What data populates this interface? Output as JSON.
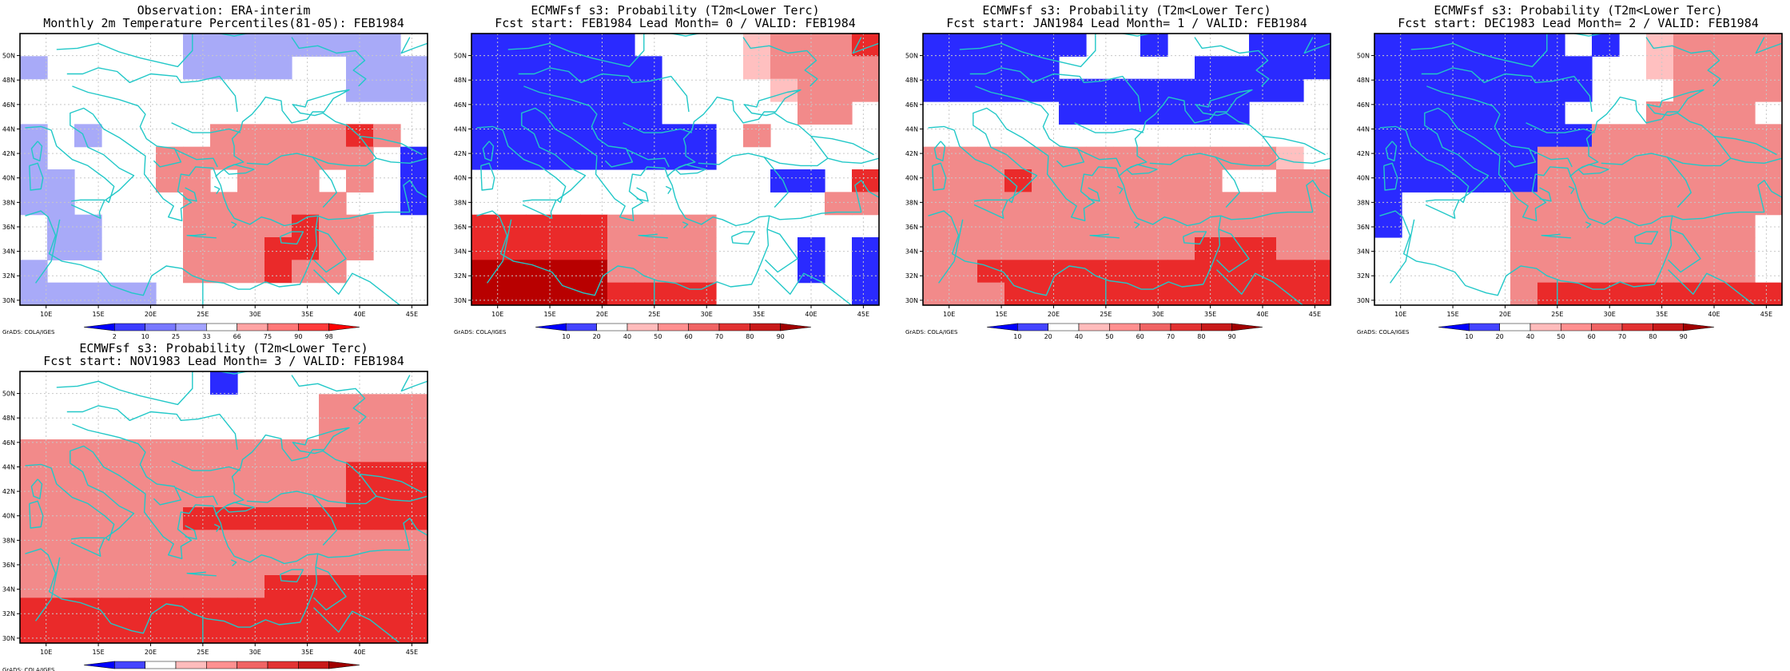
{
  "panels": [
    {
      "title_line1": "Observation: ERA-interim",
      "title_line2": "Monthly 2m Temperature Percentiles(81-05): FEB1984",
      "legend_kind": "percentile",
      "grid": [
        "WWWWWWLLLLLLLLW",
        "LWWWWWLLLLWWLLL",
        "WWWWWWWWWWWWLLL",
        "WWWWWWWWWWWWWWW",
        "LWLWWWWrrrrrRrW",
        "LWWWWrrrrrrrrWB",
        "LLWWWrrWrrrWrWB",
        "LLWWWWrrrrrrWWB",
        "WLLWWWrrrrRrrWW",
        "WLLWWWrrrRRrrWW",
        "LWWWWWrrrRrrWWW",
        "LLLLLWWWWWWWWWW"
      ],
      "footer": "GrADS: COLA/IGES"
    },
    {
      "title_line1": "ECMWFsf s3: Probability (T2m<Lower Terc)",
      "title_line2": "Fcst start: FEB1984   Lead Month= 0 / VALID: FEB1984",
      "legend_kind": "probability",
      "grid": [
        "BBBBBBWWWWlrrrR",
        "BBBBBBBWWWlrrrr",
        "BBBBBBBWWWWlrrr",
        "BBBBBBBWWWWWrrW",
        "BBBBBBBBBWrWWWW",
        "BBBBBBBBBWWWWWW",
        "WWWWWWWWWWWBBWR",
        "WWWWWWWWWWWWWrr",
        "RRRRRrrrrWWWWWW",
        "RRRRRrrrrWWWBWB",
        "DDDDDrrrrWWWBWB",
        "DDDDDRRRRWWWWWB"
      ],
      "footer": "GrADS: COLA/IGES"
    },
    {
      "title_line1": "ECMWFsf s3: Probability (T2m<Lower Terc)",
      "title_line2": "Fcst start: JAN1984   Lead Month= 1 / VALID: FEB1984",
      "legend_kind": "probability",
      "grid": [
        "BBBBBBWWBWWWBBB",
        "BBBBBWWWWWBBBBB",
        "BBBBBBBBBBBBBBW",
        "WWWWWBBBBBBBWWW",
        "WWWWWWWWWWWWWWW",
        "rrrrrrrrrrrrrlW",
        "rrrRrrrrrrrWWrr",
        "rrrrrrrrrrrrrrr",
        "rrrrrrrrrrrrrrr",
        "rrrrrrrrrrRRRrr",
        "rrRRRRRRRRRRRRR",
        "rrrRRRRRRRRRRRR"
      ],
      "footer": "GrADS: COLA/IGES"
    },
    {
      "title_line1": "ECMWFsf s3: Probability (T2m<Lower Terc)",
      "title_line2": "Fcst start: DEC1983   Lead Month= 2 / VALID: FEB1984",
      "legend_kind": "probability",
      "grid": [
        "BBBBBBBWBWlrrrr",
        "BBBBBBBBWWlrrrr",
        "BBBBBBBBWWWrrrr",
        "BBBBBBBWWWrrrrW",
        "BBBBBBBBrrrrrrr",
        "BBBBBBrrrrrrrrr",
        "BBBBBBrrrrrrrrr",
        "BWWWWrrrrrrrrrr",
        "BWWWWrrrrrrrrrW",
        "WWWWWrrrrrrrrrW",
        "WWWWWrrrrrrrrrW",
        "WWWWWrRRRRRRRRR"
      ],
      "footer": "GrADS: COLA/IGES"
    },
    {
      "title_line1": "ECMWFsf s3: Probability (T2m<Lower Terc)",
      "title_line2": "Fcst start: NOV1983   Lead Month= 3 / VALID: FEB1984",
      "legend_kind": "probability",
      "grid": [
        "WWWWWWWBWWWWWWW",
        "WWWWWWWWWWWrrrr",
        "WWWWWWWWWWWrrrr",
        "rrrrrrrrrrrrrrr",
        "rrrrrrrrrrrrRRR",
        "rrrrrrrrrrrrRRR",
        "rrrrrrRRRRRRRRR",
        "rrrrrrrrrrrrrrr",
        "rrrrrrrrrrrrrrr",
        "rrrrrrrrrRRRRRR",
        "RRRRRRRRRRRRRRR",
        "RRRRRRRRRRRRRRR"
      ],
      "footer": "GrADS: COLA/IGES"
    }
  ],
  "axes": {
    "x_ticks": [
      "10E",
      "15E",
      "20E",
      "25E",
      "30E",
      "35E",
      "40E",
      "45E"
    ],
    "y_ticks": [
      "30N",
      "32N",
      "34N",
      "36N",
      "38N",
      "40N",
      "42N",
      "44N",
      "46N",
      "48N",
      "50N"
    ]
  },
  "legends": {
    "percentile": {
      "labels": [
        "2",
        "10",
        "25",
        "33",
        "66",
        "75",
        "90",
        "98"
      ],
      "colors": [
        "#0000ff",
        "#3c3cff",
        "#7878ff",
        "#a4a4ff",
        "#ffffff",
        "#ffa4a4",
        "#ff7878",
        "#ff3c3c",
        "#ff0000"
      ]
    },
    "probability": {
      "labels": [
        "10",
        "20",
        "40",
        "50",
        "60",
        "70",
        "80",
        "90"
      ],
      "colors": [
        "#0000ff",
        "#4444ff",
        "#ffffff",
        "#ffbcbc",
        "#ff9090",
        "#f06464",
        "#e23232",
        "#c81a1a",
        "#a00000"
      ]
    }
  },
  "colors": {
    "B": "#2a2aff",
    "L": "#a8aaf8",
    "W": "#ffffff",
    "l": "#ffc0c0",
    "r": "#f28a8a",
    "R": "#ea2a2a",
    "D": "#b80000",
    "coast": "#22c8c8",
    "grid": "#c8c8c8"
  }
}
